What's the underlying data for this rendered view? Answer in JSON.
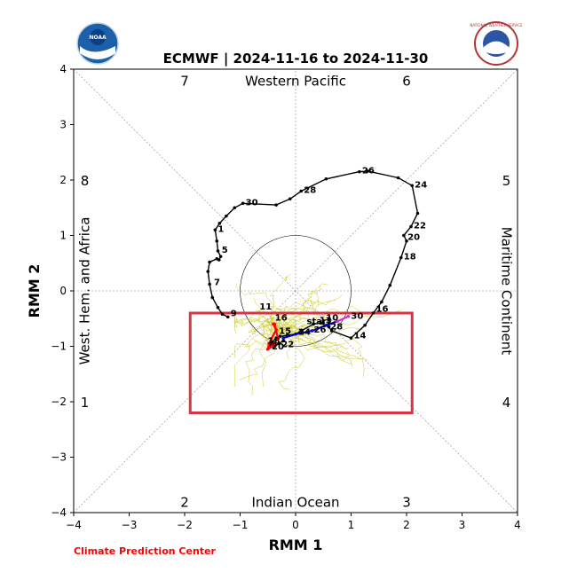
{
  "chart_data": {
    "type": "scatter",
    "title": "ECMWF | 2024-11-16 to 2024-11-30",
    "xlabel": "RMM 1",
    "ylabel": "RMM 2",
    "xlim": [
      -4,
      4
    ],
    "ylim": [
      -4,
      4
    ],
    "xticks": [
      "−4",
      "−3",
      "−2",
      "−1",
      "0",
      "1",
      "2",
      "3",
      "4"
    ],
    "yticks": [
      "−4",
      "−3",
      "−2",
      "−1",
      "0",
      "1",
      "2",
      "3",
      "4"
    ],
    "grid": false,
    "regions": {
      "top": "Western Pacific",
      "bottom": "Indian Ocean",
      "left": "West. Hem. and Africa",
      "right": "Maritime Continent"
    },
    "phases": [
      {
        "label": "7",
        "x": -2.0,
        "y": 3.8
      },
      {
        "label": "6",
        "x": 2.0,
        "y": 3.8
      },
      {
        "label": "8",
        "x": -3.8,
        "y": 2.0
      },
      {
        "label": "5",
        "x": 3.8,
        "y": 2.0
      },
      {
        "label": "1",
        "x": -3.8,
        "y": -2.0
      },
      {
        "label": "4",
        "x": 3.8,
        "y": -2.0
      },
      {
        "label": "2",
        "x": -2.0,
        "y": -3.8
      },
      {
        "label": "3",
        "x": 2.0,
        "y": -3.8
      }
    ],
    "unit_circle_radius": 1,
    "observed_series": {
      "color": "#000000",
      "points": [
        [
          -1.22,
          -0.47
        ],
        [
          -1.32,
          -0.42
        ],
        [
          -1.4,
          -0.3
        ],
        [
          -1.5,
          -0.12
        ],
        [
          -1.55,
          0.12
        ],
        [
          -1.58,
          0.35
        ],
        [
          -1.55,
          0.52
        ],
        [
          -1.42,
          0.58
        ],
        [
          -1.38,
          0.56
        ],
        [
          -1.35,
          0.62
        ],
        [
          -1.4,
          0.72
        ],
        [
          -1.42,
          0.9
        ],
        [
          -1.45,
          1.1
        ],
        [
          -1.37,
          1.22
        ],
        [
          -1.25,
          1.35
        ],
        [
          -1.1,
          1.5
        ],
        [
          -0.95,
          1.58
        ],
        [
          -0.35,
          1.55
        ],
        [
          -0.1,
          1.66
        ],
        [
          0.1,
          1.8
        ],
        [
          0.55,
          2.02
        ],
        [
          1.15,
          2.15
        ],
        [
          1.3,
          2.16
        ],
        [
          1.85,
          2.04
        ],
        [
          2.1,
          1.9
        ],
        [
          2.2,
          1.4
        ],
        [
          2.08,
          1.16
        ],
        [
          1.95,
          1.0
        ],
        [
          2.0,
          0.9
        ],
        [
          1.9,
          0.6
        ],
        [
          1.7,
          0.1
        ],
        [
          1.55,
          -0.2
        ],
        [
          1.4,
          -0.4
        ],
        [
          1.25,
          -0.62
        ],
        [
          1.0,
          -0.85
        ],
        [
          0.65,
          -0.72
        ],
        [
          0.6,
          -0.65
        ],
        [
          0.45,
          -0.58
        ],
        [
          0.32,
          -0.6
        ],
        [
          0.1,
          -0.72
        ],
        [
          0.0,
          -0.78
        ],
        [
          -0.15,
          -0.8
        ],
        [
          -0.28,
          -0.82
        ],
        [
          -0.35,
          -0.85
        ],
        [
          -0.42,
          -0.92
        ],
        [
          -0.45,
          -0.98
        ],
        [
          -0.38,
          -1.0
        ],
        [
          -0.3,
          -0.95
        ],
        [
          -0.22,
          -0.9
        ]
      ],
      "labels": [
        {
          "text": "26",
          "x": 1.15,
          "y": 2.15
        },
        {
          "text": "24",
          "x": 2.1,
          "y": 1.9
        },
        {
          "text": "22",
          "x": 2.08,
          "y": 1.16
        },
        {
          "text": "20",
          "x": 1.97,
          "y": 0.95
        },
        {
          "text": "18",
          "x": 1.9,
          "y": 0.6
        },
        {
          "text": "16",
          "x": 1.4,
          "y": -0.34
        },
        {
          "text": "14",
          "x": 1.0,
          "y": -0.82
        },
        {
          "text": "30",
          "x": -0.95,
          "y": 1.58
        },
        {
          "text": "28",
          "x": 0.1,
          "y": 1.8
        },
        {
          "text": "1",
          "x": -1.45,
          "y": 1.1
        },
        {
          "text": "5",
          "x": -1.38,
          "y": 0.72
        },
        {
          "text": "7",
          "x": -1.52,
          "y": 0.14
        },
        {
          "text": "9",
          "x": -1.22,
          "y": -0.42
        },
        {
          "text": "11",
          "x": -0.7,
          "y": -0.3
        },
        {
          "text": "16",
          "x": -0.42,
          "y": -0.5
        },
        {
          "text": "13",
          "x": 0.38,
          "y": -0.55
        },
        {
          "text": "10",
          "x": 0.5,
          "y": -0.5
        },
        {
          "text": "30",
          "x": 0.95,
          "y": -0.47
        },
        {
          "text": "28",
          "x": 0.58,
          "y": -0.66
        },
        {
          "text": "26",
          "x": 0.28,
          "y": -0.72
        },
        {
          "text": "24",
          "x": 0.0,
          "y": -0.76
        },
        {
          "text": "15",
          "x": -0.35,
          "y": -0.74
        },
        {
          "text": "18",
          "x": -0.55,
          "y": -0.92
        },
        {
          "text": "20",
          "x": -0.48,
          "y": -1.02
        },
        {
          "text": "22",
          "x": -0.3,
          "y": -0.98
        }
      ]
    },
    "start_label": {
      "text": "start",
      "x": 0.2,
      "y": -0.6
    },
    "forecast_segments": [
      {
        "color": "#ff0000",
        "points": [
          [
            -0.4,
            -0.6
          ],
          [
            -0.35,
            -0.7
          ],
          [
            -0.48,
            -0.95
          ],
          [
            -0.5,
            -1.05
          ],
          [
            -0.42,
            -1.0
          ],
          [
            -0.32,
            -0.85
          ],
          [
            -0.38,
            -0.6
          ]
        ]
      },
      {
        "color": "#0000cc",
        "points": [
          [
            -0.22,
            -0.85
          ],
          [
            0.0,
            -0.78
          ],
          [
            0.3,
            -0.72
          ],
          [
            0.55,
            -0.62
          ],
          [
            0.75,
            -0.55
          ]
        ]
      },
      {
        "color": "#cc33cc",
        "points": [
          [
            0.75,
            -0.55
          ],
          [
            0.95,
            -0.46
          ]
        ]
      }
    ],
    "ensemble_color": "#cccc33",
    "box": {
      "x0": -1.9,
      "x1": 2.1,
      "y0": -2.2,
      "y1": -0.4,
      "color": "#d63545"
    }
  },
  "credit": "Climate Prediction Center",
  "logos": {
    "left": "noaa-logo",
    "left_text": "NOAA",
    "right": "national-weather-service-logo",
    "right_text": "NATIONAL WEATHER SERVICE"
  }
}
